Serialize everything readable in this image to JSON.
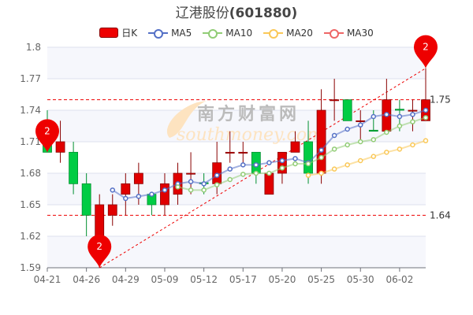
{
  "title": {
    "name": "辽港股份",
    "code": "(601880)"
  },
  "legend": [
    {
      "label": "日K",
      "icon": "candlestick-icon",
      "color": "#e00000"
    },
    {
      "label": "MA5",
      "icon": "line-circle-icon",
      "color": "#5470c6"
    },
    {
      "label": "MA10",
      "icon": "line-circle-icon",
      "color": "#91cc75"
    },
    {
      "label": "MA20",
      "icon": "line-circle-icon",
      "color": "#fac858"
    },
    {
      "label": "MA30",
      "icon": "line-circle-icon",
      "color": "#ee6666"
    }
  ],
  "watermark": "南方财富网 southmoney.com",
  "chart_data": {
    "type": "candlestick",
    "title": "辽港股份(601880)",
    "ylim": [
      1.59,
      1.8
    ],
    "yticks": [
      "1.59",
      "1.62",
      "1.65",
      "1.68",
      "1.71",
      "1.74",
      "1.77",
      "1.8"
    ],
    "xticks": [
      {
        "index": 0,
        "label": "04-21"
      },
      {
        "index": 3,
        "label": "04-26"
      },
      {
        "index": 6,
        "label": "04-29"
      },
      {
        "index": 9,
        "label": "05-09"
      },
      {
        "index": 12,
        "label": "05-12"
      },
      {
        "index": 15,
        "label": "05-17"
      },
      {
        "index": 18,
        "label": "05-20"
      },
      {
        "index": 21,
        "label": "05-25"
      },
      {
        "index": 24,
        "label": "05-30"
      },
      {
        "index": 27,
        "label": "06-02"
      }
    ],
    "up_color": "#e00000",
    "down_color": "#00cc44",
    "ohlc": [
      [
        1.71,
        1.74,
        1.7,
        1.7
      ],
      [
        1.7,
        1.73,
        1.69,
        1.71
      ],
      [
        1.7,
        1.71,
        1.66,
        1.67
      ],
      [
        1.67,
        1.68,
        1.62,
        1.64
      ],
      [
        1.62,
        1.66,
        1.59,
        1.65
      ],
      [
        1.64,
        1.66,
        1.63,
        1.65
      ],
      [
        1.66,
        1.68,
        1.64,
        1.67
      ],
      [
        1.67,
        1.69,
        1.65,
        1.68
      ],
      [
        1.66,
        1.66,
        1.64,
        1.65
      ],
      [
        1.65,
        1.68,
        1.64,
        1.67
      ],
      [
        1.66,
        1.69,
        1.65,
        1.68
      ],
      [
        1.68,
        1.7,
        1.66,
        1.68
      ],
      [
        1.671,
        1.68,
        1.66,
        1.67
      ],
      [
        1.67,
        1.71,
        1.66,
        1.69
      ],
      [
        1.7,
        1.72,
        1.69,
        1.7
      ],
      [
        1.7,
        1.71,
        1.69,
        1.7
      ],
      [
        1.7,
        1.7,
        1.67,
        1.68
      ],
      [
        1.66,
        1.68,
        1.66,
        1.68
      ],
      [
        1.68,
        1.7,
        1.67,
        1.7
      ],
      [
        1.7,
        1.72,
        1.7,
        1.71
      ],
      [
        1.71,
        1.73,
        1.67,
        1.68
      ],
      [
        1.68,
        1.76,
        1.67,
        1.74
      ],
      [
        1.75,
        1.77,
        1.73,
        1.75
      ],
      [
        1.75,
        1.75,
        1.73,
        1.73
      ],
      [
        1.73,
        1.74,
        1.71,
        1.73
      ],
      [
        1.721,
        1.74,
        1.72,
        1.72
      ],
      [
        1.72,
        1.77,
        1.72,
        1.75
      ],
      [
        1.741,
        1.75,
        1.72,
        1.74
      ],
      [
        1.74,
        1.75,
        1.72,
        1.74
      ],
      [
        1.73,
        1.78,
        1.73,
        1.75
      ]
    ],
    "ma": [
      {
        "name": "MA5",
        "color": "#5470c6",
        "start": 5,
        "values": [
          1.664,
          1.656,
          1.658,
          1.66,
          1.664,
          1.67,
          1.672,
          1.67,
          1.678,
          1.684,
          1.688,
          1.688,
          1.69,
          1.692,
          1.694,
          1.69,
          1.702,
          1.716,
          1.722,
          1.726,
          1.734,
          1.736,
          1.734,
          1.736,
          1.74
        ]
      },
      {
        "name": "MA10",
        "color": "#91cc75",
        "start": 10,
        "values": [
          1.667,
          1.664,
          1.664,
          1.669,
          1.674,
          1.679,
          1.68,
          1.68,
          1.685,
          1.689,
          1.689,
          1.695,
          1.703,
          1.707,
          1.71,
          1.712,
          1.719,
          1.725,
          1.729,
          1.733
        ]
      },
      {
        "name": "MA20",
        "color": "#fac858",
        "start": 20,
        "values": [
          1.678,
          1.68,
          1.684,
          1.688,
          1.692,
          1.696,
          1.7,
          1.703,
          1.707,
          1.711
        ]
      }
    ],
    "mark_lines": [
      {
        "value": 1.75,
        "label": "1.75"
      },
      {
        "value": 1.64,
        "label": "1.64"
      }
    ],
    "trend_line": {
      "from": {
        "index": 4,
        "value": 1.59
      },
      "to": {
        "index": 29,
        "value": 1.78
      }
    },
    "mark_points": [
      {
        "index": 0,
        "value": 1.7,
        "label": "2"
      },
      {
        "index": 4,
        "value": 1.59,
        "label": "2"
      },
      {
        "index": 29,
        "value": 1.78,
        "label": "2"
      }
    ]
  }
}
